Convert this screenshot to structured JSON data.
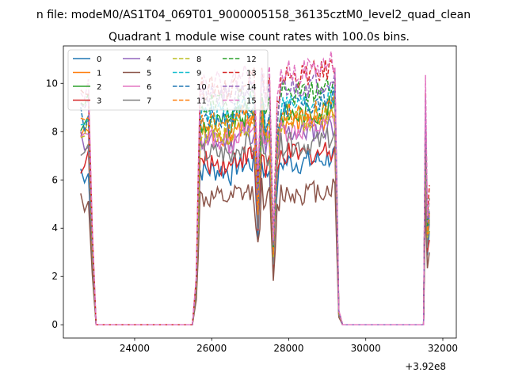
{
  "figure": {
    "suptitle": "n file: modeM0/AS1T04_069T01_9000005158_36135cztM0_level2_quad_clean"
  },
  "chart_data": {
    "type": "line",
    "title": "Quadrant 1 module wise count rates with 100.0s bins.",
    "xlabel": "",
    "ylabel": "",
    "x_offset_label": "+3.92e8",
    "x_offset": 392000000,
    "xlim": [
      22150,
      32350
    ],
    "ylim": [
      -0.55,
      11.55
    ],
    "xticks": [
      24000,
      26000,
      28000,
      30000,
      32000
    ],
    "xtick_labels": [
      "24000",
      "26000",
      "28000",
      "30000",
      "32000"
    ],
    "yticks": [
      0,
      2,
      4,
      6,
      8,
      10
    ],
    "ytick_labels": [
      "0",
      "2",
      "4",
      "6",
      "8",
      "10"
    ],
    "grid": false,
    "legend": {
      "placement": "top-left",
      "columns": 4
    },
    "profile": {
      "x": [
        22600,
        22700,
        22800,
        22900,
        23000,
        25400,
        25500,
        25600,
        25700,
        26400,
        26500,
        26600,
        27100,
        27200,
        27300,
        27400,
        27500,
        27600,
        27700,
        27800,
        28300,
        28900,
        29200,
        29300,
        29400,
        29500,
        31400,
        31500,
        31550,
        31600,
        31650
      ],
      "y": [
        1.0,
        0.98,
        1.02,
        0.4,
        0.0,
        0.0,
        0.0,
        0.2,
        1.0,
        1.0,
        0.97,
        1.03,
        1.05,
        0.6,
        1.08,
        0.95,
        1.02,
        0.35,
        0.9,
        1.05,
        1.05,
        1.07,
        1.1,
        0.06,
        0.0,
        0.0,
        0.0,
        0.0,
        1.0,
        0.45,
        0.55
      ]
    },
    "series": [
      {
        "name": "0",
        "color": "#1f77b4",
        "dashed": false,
        "level": 6.4
      },
      {
        "name": "1",
        "color": "#ff7f0e",
        "dashed": false,
        "level": 7.9
      },
      {
        "name": "2",
        "color": "#2ca02c",
        "dashed": false,
        "level": 8.3
      },
      {
        "name": "3",
        "color": "#d62728",
        "dashed": false,
        "level": 6.7
      },
      {
        "name": "4",
        "color": "#9467bd",
        "dashed": false,
        "level": 7.6
      },
      {
        "name": "5",
        "color": "#8c564b",
        "dashed": false,
        "level": 5.2
      },
      {
        "name": "6",
        "color": "#e377c2",
        "dashed": false,
        "level": 7.7
      },
      {
        "name": "7",
        "color": "#7f7f7f",
        "dashed": false,
        "level": 7.1
      },
      {
        "name": "8",
        "color": "#bcbd22",
        "dashed": true,
        "level": 8.0
      },
      {
        "name": "9",
        "color": "#17becf",
        "dashed": true,
        "level": 8.7
      },
      {
        "name": "10",
        "color": "#1f77b4",
        "dashed": true,
        "level": 8.6
      },
      {
        "name": "11",
        "color": "#ff7f0e",
        "dashed": true,
        "level": 8.3
      },
      {
        "name": "12",
        "color": "#2ca02c",
        "dashed": true,
        "level": 9.1
      },
      {
        "name": "13",
        "color": "#d62728",
        "dashed": true,
        "level": 9.8
      },
      {
        "name": "14",
        "color": "#9467bd",
        "dashed": true,
        "level": 9.4
      },
      {
        "name": "15",
        "color": "#e377c2",
        "dashed": true,
        "level": 10.0
      }
    ]
  }
}
